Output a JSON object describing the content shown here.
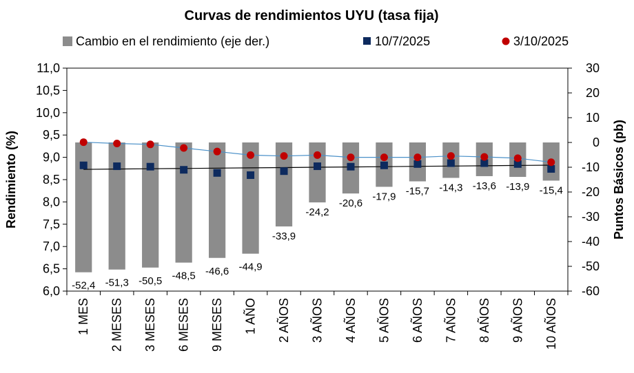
{
  "chart_data": {
    "type": "bar+scatter",
    "title": "Curvas de rendimientos UYU (tasa fija)",
    "categories": [
      "1 MES",
      "2 MESES",
      "3 MESES",
      "6 MESES",
      "9 MESES",
      "1 AÑO",
      "2 AÑOS",
      "3 AÑOS",
      "4 AÑOS",
      "5 AÑOS",
      "6 AÑOS",
      "7 AÑOS",
      "8 AÑOS",
      "9 AÑOS",
      "10 AÑOS"
    ],
    "ylabel_left": "Rendimiento (%)",
    "ylabel_right": "Puntos Básicos (pb)",
    "ylim_left": [
      6.0,
      11.0
    ],
    "ylim_right": [
      -60,
      30
    ],
    "yticks_left": [
      "6,0",
      "6,5",
      "7,0",
      "7,5",
      "8,0",
      "8,5",
      "9,0",
      "9,5",
      "10,0",
      "10,5",
      "11,0"
    ],
    "yticks_right": [
      "-60",
      "-50",
      "-40",
      "-30",
      "-20",
      "-10",
      "0",
      "10",
      "20",
      "30"
    ],
    "grid": false,
    "legend_position": "top",
    "series": [
      {
        "name": "Cambio en el rendimiento (eje der.)",
        "type": "bar",
        "axis": "right",
        "color": "#8c8c8c",
        "values": [
          -52.4,
          -51.3,
          -50.5,
          -48.5,
          -46.6,
          -44.9,
          -33.9,
          -24.2,
          -20.6,
          -17.9,
          -15.7,
          -14.3,
          -13.6,
          -13.9,
          -15.4
        ],
        "labels": [
          "-52,4",
          "-51,3",
          "-50,5",
          "-48,5",
          "-46,6",
          "-44,9",
          "-33,9",
          "-24,2",
          "-20,6",
          "-17,9",
          "-15,7",
          "-14,3",
          "-13,6",
          "-13,9",
          "-15,4"
        ]
      },
      {
        "name": "10/7/2025",
        "type": "scatter",
        "marker": "square",
        "axis": "left",
        "color": "#0d2a5e",
        "values": [
          8.82,
          8.8,
          8.79,
          8.72,
          8.65,
          8.6,
          8.69,
          8.8,
          8.79,
          8.82,
          8.85,
          8.87,
          8.87,
          8.85,
          8.74
        ]
      },
      {
        "name": "3/10/2025",
        "type": "scatter",
        "marker": "circle",
        "axis": "left",
        "color": "#c00000",
        "values": [
          9.34,
          9.31,
          9.29,
          9.21,
          9.13,
          9.05,
          9.03,
          9.05,
          9.0,
          9.0,
          9.0,
          9.03,
          9.01,
          8.98,
          8.89
        ]
      }
    ],
    "trendlines": [
      {
        "series": "10/7/2025",
        "color": "#000000"
      },
      {
        "series": "3/10/2025",
        "color": "#4a90c8"
      }
    ]
  }
}
